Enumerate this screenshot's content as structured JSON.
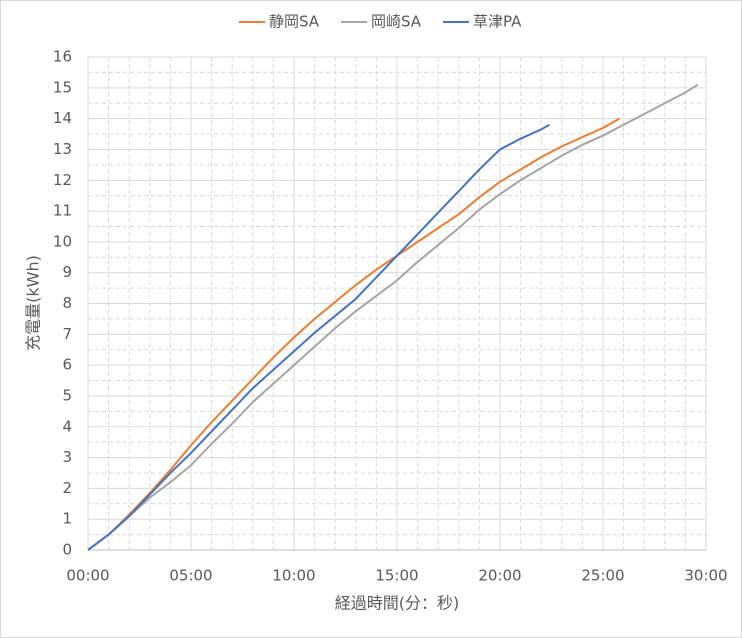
{
  "chart_data": {
    "type": "line",
    "x_label": "経過時間(分：秒)",
    "y_label": "充電量(kWh)",
    "xlim": [
      0,
      30
    ],
    "xticks": [
      {
        "value": 0,
        "label": "00:00"
      },
      {
        "value": 5,
        "label": "05:00"
      },
      {
        "value": 10,
        "label": "10:00"
      },
      {
        "value": 15,
        "label": "15:00"
      },
      {
        "value": 20,
        "label": "20:00"
      },
      {
        "value": 25,
        "label": "25:00"
      },
      {
        "value": 30,
        "label": "30:00"
      }
    ],
    "ylim": [
      0,
      16
    ],
    "yticks": [
      0,
      1,
      2,
      3,
      4,
      5,
      6,
      7,
      8,
      9,
      10,
      11,
      12,
      13,
      14,
      15,
      16
    ],
    "grid": true,
    "minor_grid": true,
    "legend": "top",
    "series": [
      {
        "name": "静岡SA",
        "color": "#ed7d31",
        "x": [
          0,
          1,
          2,
          3,
          4,
          5,
          6,
          7,
          8,
          9,
          10,
          11,
          12,
          13,
          14,
          15,
          16,
          17,
          18,
          19,
          20,
          21,
          22,
          23,
          24,
          25,
          25.8
        ],
        "values": [
          0,
          0.5,
          1.15,
          1.85,
          2.6,
          3.4,
          4.15,
          4.85,
          5.55,
          6.25,
          6.9,
          7.5,
          8.05,
          8.6,
          9.1,
          9.55,
          10.0,
          10.45,
          10.9,
          11.45,
          11.95,
          12.35,
          12.75,
          13.1,
          13.4,
          13.7,
          14.0
        ]
      },
      {
        "name": "岡崎SA",
        "color": "#a5a5a5",
        "x": [
          0,
          1,
          2,
          3,
          4,
          5,
          6,
          7,
          8,
          9,
          10,
          11,
          12,
          13,
          14,
          15,
          16,
          17,
          18,
          19,
          20,
          21,
          22,
          23,
          24,
          25,
          26,
          27,
          28,
          29,
          29.6
        ],
        "values": [
          0,
          0.5,
          1.1,
          1.7,
          2.2,
          2.75,
          3.45,
          4.1,
          4.8,
          5.4,
          6.0,
          6.6,
          7.2,
          7.75,
          8.25,
          8.75,
          9.35,
          9.9,
          10.45,
          11.05,
          11.55,
          12.0,
          12.4,
          12.8,
          13.15,
          13.45,
          13.8,
          14.15,
          14.5,
          14.85,
          15.1
        ]
      },
      {
        "name": "草津PA",
        "color": "#4472c4",
        "x": [
          0,
          1,
          2,
          3,
          4,
          5,
          6,
          7,
          8,
          9,
          10,
          11,
          12,
          13,
          14,
          15,
          16,
          17,
          18,
          19,
          20,
          21,
          22,
          22.4
        ],
        "values": [
          0,
          0.5,
          1.1,
          1.8,
          2.5,
          3.15,
          3.85,
          4.55,
          5.25,
          5.85,
          6.45,
          7.05,
          7.6,
          8.15,
          8.85,
          9.55,
          10.25,
          10.95,
          11.65,
          12.35,
          13.0,
          13.35,
          13.65,
          13.8
        ]
      }
    ]
  }
}
